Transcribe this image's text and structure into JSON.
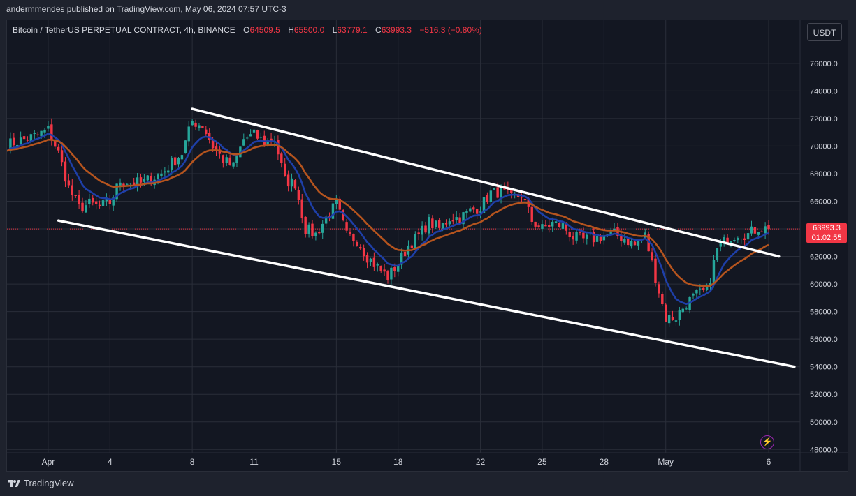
{
  "publisher": {
    "text": "andermmendes published on TradingView.com, May 06, 2024 07:57 UTC-3"
  },
  "legend": {
    "symbol": "Bitcoin / TetherUS PERPETUAL CONTRACT, 4h, BINANCE",
    "o_label": "O",
    "o_value": "64509.5",
    "h_label": "H",
    "h_value": "65500.0",
    "l_label": "L",
    "l_value": "63779.1",
    "c_label": "C",
    "c_value": "63993.3",
    "change": "−516.3 (−0.80%)"
  },
  "currency": "USDT",
  "last_price": {
    "price": "63993.3",
    "countdown": "01:02:55"
  },
  "footer": {
    "brand": "TradingView"
  },
  "icons": {
    "alert": "lightning-icon",
    "logo": "tradingview-logo-icon"
  },
  "colors": {
    "background": "#131722",
    "grid": "#2a2e39",
    "up": "#26a69a",
    "down": "#f23645",
    "ema_fast": "#1e3fa8",
    "ema_slow": "#b5541e",
    "trendline": "#ffffff"
  },
  "chart_data": {
    "type": "candlestick",
    "timeframe": "4h",
    "y_ticks": [
      "48000.0",
      "50000.0",
      "52000.0",
      "54000.0",
      "56000.0",
      "58000.0",
      "60000.0",
      "62000.0",
      "64000.0",
      "66000.0",
      "68000.0",
      "70000.0",
      "72000.0",
      "74000.0",
      "76000.0"
    ],
    "x_ticks": [
      "Apr",
      "4",
      "8",
      "11",
      "15",
      "18",
      "22",
      "25",
      "28",
      "May",
      "6"
    ],
    "x_range": [
      "2024-03-30",
      "2024-05-08"
    ],
    "ylim": [
      48000,
      77800
    ],
    "close_path": [
      [
        "2024-03-30T00:00",
        70100
      ],
      [
        "2024-03-31T12:00",
        70800
      ],
      [
        "2024-04-01T00:00",
        71200
      ],
      [
        "2024-04-01T12:00",
        69500
      ],
      [
        "2024-04-02T00:00",
        67000
      ],
      [
        "2024-04-02T12:00",
        65500
      ],
      [
        "2024-04-03T00:00",
        65800
      ],
      [
        "2024-04-03T12:00",
        65600
      ],
      [
        "2024-04-04T00:00",
        65900
      ],
      [
        "2024-04-04T12:00",
        67500
      ],
      [
        "2024-04-05T12:00",
        67300
      ],
      [
        "2024-04-06T12:00",
        68000
      ],
      [
        "2024-04-07T12:00",
        69500
      ],
      [
        "2024-04-08T00:00",
        71800
      ],
      [
        "2024-04-08T12:00",
        71500
      ],
      [
        "2024-04-09T00:00",
        70000
      ],
      [
        "2024-04-09T12:00",
        69000
      ],
      [
        "2024-04-10T00:00",
        68500
      ],
      [
        "2024-04-10T12:00",
        70500
      ],
      [
        "2024-04-11T00:00",
        70800
      ],
      [
        "2024-04-11T12:00",
        70300
      ],
      [
        "2024-04-12T00:00",
        70500
      ],
      [
        "2024-04-12T12:00",
        67500
      ],
      [
        "2024-04-13T00:00",
        67300
      ],
      [
        "2024-04-13T12:00",
        64000
      ],
      [
        "2024-04-14T00:00",
        63600
      ],
      [
        "2024-04-14T12:00",
        64800
      ],
      [
        "2024-04-15T00:00",
        65800
      ],
      [
        "2024-04-15T12:00",
        63500
      ],
      [
        "2024-04-16T00:00",
        63200
      ],
      [
        "2024-04-16T12:00",
        62000
      ],
      [
        "2024-04-17T00:00",
        61200
      ],
      [
        "2024-04-17T12:00",
        60500
      ],
      [
        "2024-04-18T00:00",
        61500
      ],
      [
        "2024-04-18T12:00",
        62800
      ],
      [
        "2024-04-19T00:00",
        63500
      ],
      [
        "2024-04-19T12:00",
        64500
      ],
      [
        "2024-04-20T00:00",
        64000
      ],
      [
        "2024-04-20T12:00",
        64800
      ],
      [
        "2024-04-21T00:00",
        64800
      ],
      [
        "2024-04-21T12:00",
        65300
      ],
      [
        "2024-04-22T00:00",
        65600
      ],
      [
        "2024-04-22T12:00",
        66600
      ],
      [
        "2024-04-23T00:00",
        66700
      ],
      [
        "2024-04-23T12:00",
        66200
      ],
      [
        "2024-04-24T00:00",
        66500
      ],
      [
        "2024-04-24T12:00",
        64600
      ],
      [
        "2024-04-25T00:00",
        64000
      ],
      [
        "2024-04-25T12:00",
        64400
      ],
      [
        "2024-04-26T00:00",
        64200
      ],
      [
        "2024-04-26T12:00",
        63400
      ],
      [
        "2024-04-27T00:00",
        63200
      ],
      [
        "2024-04-27T12:00",
        63300
      ],
      [
        "2024-04-28T00:00",
        63500
      ],
      [
        "2024-04-28T12:00",
        63600
      ],
      [
        "2024-04-29T00:00",
        63300
      ],
      [
        "2024-04-29T12:00",
        62800
      ],
      [
        "2024-04-30T00:00",
        63500
      ],
      [
        "2024-04-30T12:00",
        60500
      ],
      [
        "2024-05-01T00:00",
        57500
      ],
      [
        "2024-05-01T12:00",
        57600
      ],
      [
        "2024-05-02T00:00",
        58600
      ],
      [
        "2024-05-02T12:00",
        59200
      ],
      [
        "2024-05-03T00:00",
        59500
      ],
      [
        "2024-05-03T12:00",
        62500
      ],
      [
        "2024-05-04T00:00",
        63300
      ],
      [
        "2024-05-04T12:00",
        63700
      ],
      [
        "2024-05-05T00:00",
        63600
      ],
      [
        "2024-05-05T12:00",
        64100
      ],
      [
        "2024-05-06T00:00",
        63993.3
      ]
    ],
    "trendlines": [
      {
        "name": "upper",
        "from": [
          "2024-04-08T00:00",
          72700
        ],
        "to": [
          "2024-05-06T12:00",
          62000
        ]
      },
      {
        "name": "lower",
        "from": [
          "2024-04-01T12:00",
          64600
        ],
        "to": [
          "2024-05-07T06:00",
          54000
        ]
      }
    ],
    "moving_averages": [
      {
        "color": "#1e3fa8",
        "period": 9
      },
      {
        "color": "#b5541e",
        "period": 21
      }
    ],
    "last_price_line": 63993.3
  }
}
